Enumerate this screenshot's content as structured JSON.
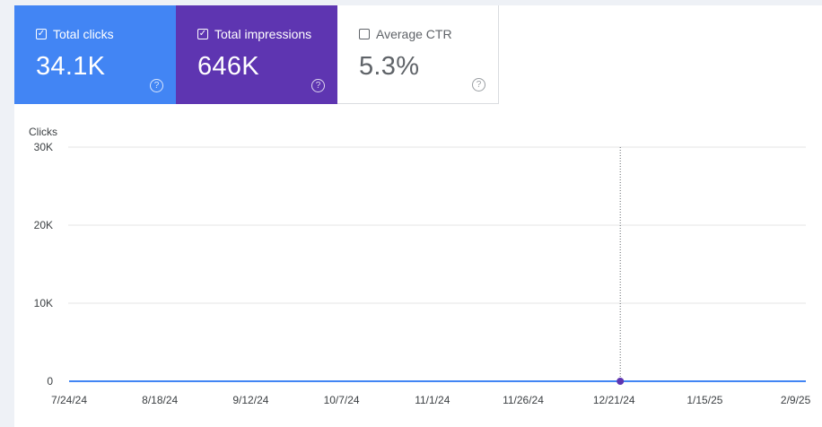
{
  "metrics": {
    "clicks": {
      "label": "Total clicks",
      "value": "34.1K",
      "checked": true,
      "color": "#4285f4"
    },
    "impressions": {
      "label": "Total impressions",
      "value": "646K",
      "checked": true,
      "color": "#5e35b1"
    },
    "ctr": {
      "label": "Average CTR",
      "value": "5.3%",
      "checked": false,
      "color": "#ffffff"
    }
  },
  "chart_data": {
    "type": "line",
    "ylabel": "Clicks",
    "yticks": [
      "30K",
      "20K",
      "10K",
      "0"
    ],
    "ylim": [
      0,
      30000
    ],
    "xticks": [
      "7/24/24",
      "8/18/24",
      "9/12/24",
      "10/7/24",
      "11/1/24",
      "11/26/24",
      "12/21/24",
      "1/15/25",
      "2/9/25"
    ],
    "series": [
      {
        "values": [
          0,
          0,
          0,
          0,
          0,
          0,
          0,
          0,
          0
        ],
        "color": "#4285f4"
      }
    ],
    "highlight": {
      "x": "12/21/24",
      "value": 0,
      "color": "#5e35b1"
    },
    "grid": true
  }
}
